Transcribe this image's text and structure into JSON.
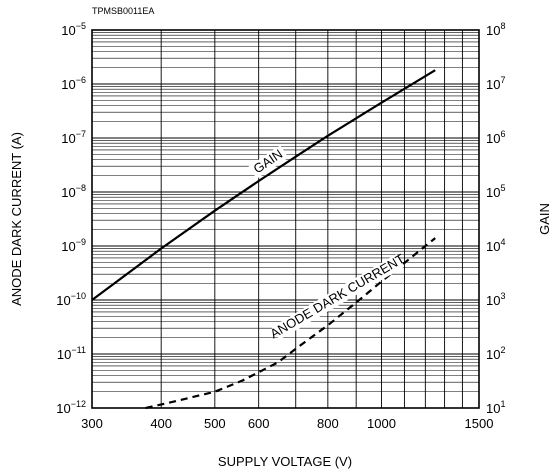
{
  "figure_code": "TPMSB0011EA",
  "chart_data": {
    "type": "line",
    "title": "",
    "xlabel": "SUPPLY  VOLTAGE (V)",
    "ylabel_left": "ANODE  DARK  CURRENT (A)",
    "ylabel_right": "GAIN",
    "x_scale": "log",
    "y_scale": "log",
    "xlim": [
      300,
      1500
    ],
    "ylim_left": [
      1e-12,
      1e-05
    ],
    "ylim_right": [
      10,
      100000000
    ],
    "grid": true,
    "x_ticks": [
      {
        "value": 300,
        "label": "300"
      },
      {
        "value": 400,
        "label": "400"
      },
      {
        "value": 500,
        "label": "500"
      },
      {
        "value": 600,
        "label": "600"
      },
      {
        "value": 800,
        "label": "800"
      },
      {
        "value": 1000,
        "label": "1000"
      },
      {
        "value": 1500,
        "label": "1500"
      }
    ],
    "y_ticks_left": [
      {
        "value": 1e-05,
        "base": "10",
        "exp": "−5"
      },
      {
        "value": 1e-06,
        "base": "10",
        "exp": "−6"
      },
      {
        "value": 1e-07,
        "base": "10",
        "exp": "−7"
      },
      {
        "value": 1e-08,
        "base": "10",
        "exp": "−8"
      },
      {
        "value": 1e-09,
        "base": "10",
        "exp": "−9"
      },
      {
        "value": 1e-10,
        "base": "10",
        "exp": "−10"
      },
      {
        "value": 1e-11,
        "base": "10",
        "exp": "−11"
      },
      {
        "value": 1e-12,
        "base": "10",
        "exp": "−12"
      }
    ],
    "y_ticks_right": [
      {
        "value": 100000000,
        "base": "10",
        "exp": "8"
      },
      {
        "value": 10000000,
        "base": "10",
        "exp": "7"
      },
      {
        "value": 1000000,
        "base": "10",
        "exp": "6"
      },
      {
        "value": 100000,
        "base": "10",
        "exp": "5"
      },
      {
        "value": 10000,
        "base": "10",
        "exp": "4"
      },
      {
        "value": 1000,
        "base": "10",
        "exp": "3"
      },
      {
        "value": 100,
        "base": "10",
        "exp": "2"
      },
      {
        "value": 10,
        "base": "10",
        "exp": "1"
      }
    ],
    "series": [
      {
        "name": "GAIN",
        "axis": "right",
        "style": "solid",
        "color": "#000000",
        "points": [
          [
            300,
            1000
          ],
          [
            400,
            9000
          ],
          [
            500,
            45000
          ],
          [
            600,
            160000
          ],
          [
            700,
            450000
          ],
          [
            800,
            1100000
          ],
          [
            1000,
            4500000
          ],
          [
            1250,
            18000000
          ]
        ],
        "label_at": [
          630,
          316000
        ]
      },
      {
        "name": "ANODE DARK CURRENT",
        "axis": "left",
        "style": "dashed",
        "color": "#000000",
        "points": [
          [
            375,
            1e-12
          ],
          [
            420,
            1.3e-12
          ],
          [
            500,
            2e-12
          ],
          [
            560,
            3.2e-12
          ],
          [
            650,
            7e-12
          ],
          [
            700,
            1.25e-11
          ],
          [
            800,
            3.4e-11
          ],
          [
            900,
            9e-11
          ],
          [
            1000,
            2.2e-10
          ],
          [
            1250,
            1.4e-09
          ]
        ],
        "label_at": [
          840,
          1e-10
        ]
      }
    ]
  }
}
